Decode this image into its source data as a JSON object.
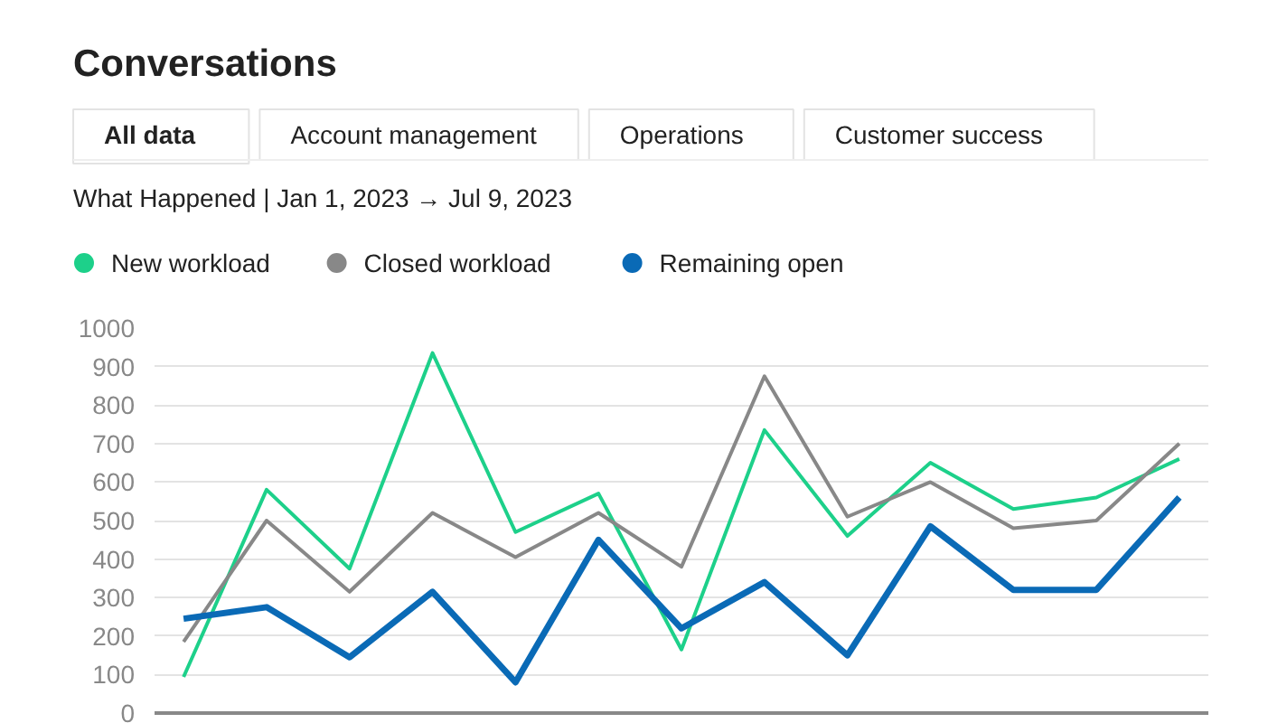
{
  "chart_data": {
    "type": "line",
    "title": "Conversations",
    "subtitle": "What Happened | Jan 1, 2023 → Jul 9, 2023",
    "annotations": [
      "All data",
      "Account management",
      "Operations",
      "Customer success"
    ],
    "categories": [
      null,
      null,
      null,
      null,
      null,
      null,
      null,
      null,
      null,
      null,
      null,
      null,
      null
    ],
    "series": [
      {
        "name": "New workload",
        "color": "#1dd08a",
        "values": [
          94,
          580,
          375,
          935,
          470,
          570,
          165,
          735,
          460,
          650,
          530,
          560,
          660
        ]
      },
      {
        "name": "Closed workload",
        "color": "#888888",
        "values": [
          185,
          500,
          315,
          520,
          405,
          520,
          380,
          875,
          510,
          600,
          480,
          500,
          700
        ]
      },
      {
        "name": "Remaining open",
        "color": "#0a6ab6",
        "values": [
          245,
          275,
          145,
          315,
          80,
          450,
          220,
          340,
          150,
          485,
          320,
          320,
          560
        ]
      }
    ],
    "ylim": [
      0,
      1000
    ],
    "yticks": [
      0,
      100,
      200,
      300,
      400,
      500,
      600,
      700,
      800,
      900,
      1000
    ],
    "grid": "y",
    "legend": "top left",
    "tick_labels": "y",
    "marker": "none",
    "line_style": "solid"
  }
}
